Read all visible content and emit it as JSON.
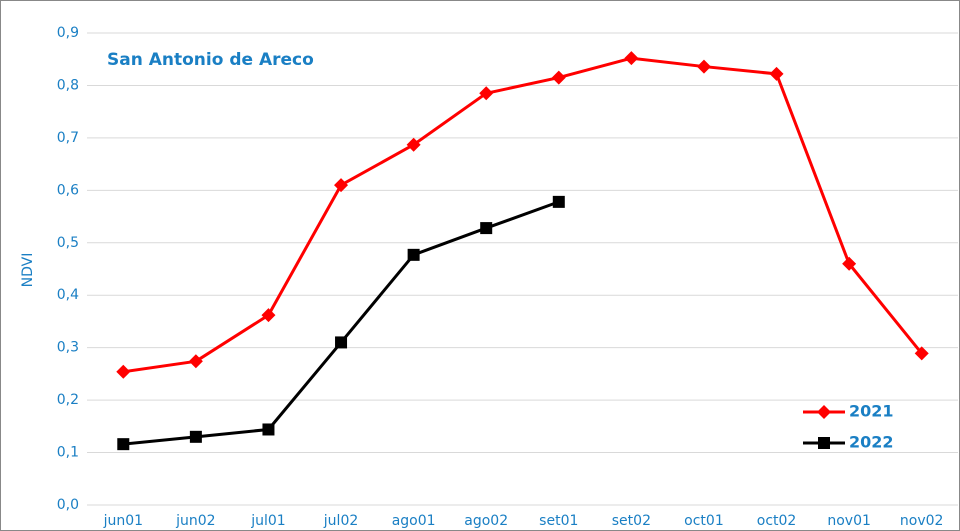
{
  "chart_data": {
    "type": "line",
    "title": "San Antonio de Areco",
    "y_label": "NDVI",
    "categories": [
      "jun01",
      "jun02",
      "jul01",
      "jul02",
      "ago01",
      "ago02",
      "set01",
      "set02",
      "oct01",
      "oct02",
      "nov01",
      "nov02"
    ],
    "series": [
      {
        "name": "2021",
        "color": "#ff0000",
        "marker": "diamond",
        "values": [
          0.254,
          0.274,
          0.362,
          0.61,
          0.687,
          0.785,
          0.815,
          0.852,
          0.836,
          0.822,
          0.46,
          0.289
        ]
      },
      {
        "name": "2022",
        "color": "#000000",
        "marker": "square",
        "values": [
          0.116,
          0.13,
          0.144,
          0.31,
          0.477,
          0.528,
          0.578,
          null,
          null,
          null,
          null,
          null
        ]
      }
    ],
    "ylim": [
      0,
      0.9
    ],
    "yticks": [
      {
        "value": 0,
        "label": "0,0"
      },
      {
        "value": 0.1,
        "label": "0,1"
      },
      {
        "value": 0.2,
        "label": "0,2"
      },
      {
        "value": 0.3,
        "label": "0,3"
      },
      {
        "value": 0.4,
        "label": "0,4"
      },
      {
        "value": 0.5,
        "label": "0,5"
      },
      {
        "value": 0.6,
        "label": "0,6"
      },
      {
        "value": 0.7,
        "label": "0,7"
      },
      {
        "value": 0.8,
        "label": "0,8"
      },
      {
        "value": 0.9,
        "label": "0,9"
      }
    ],
    "grid": true,
    "legend": "lower right"
  }
}
